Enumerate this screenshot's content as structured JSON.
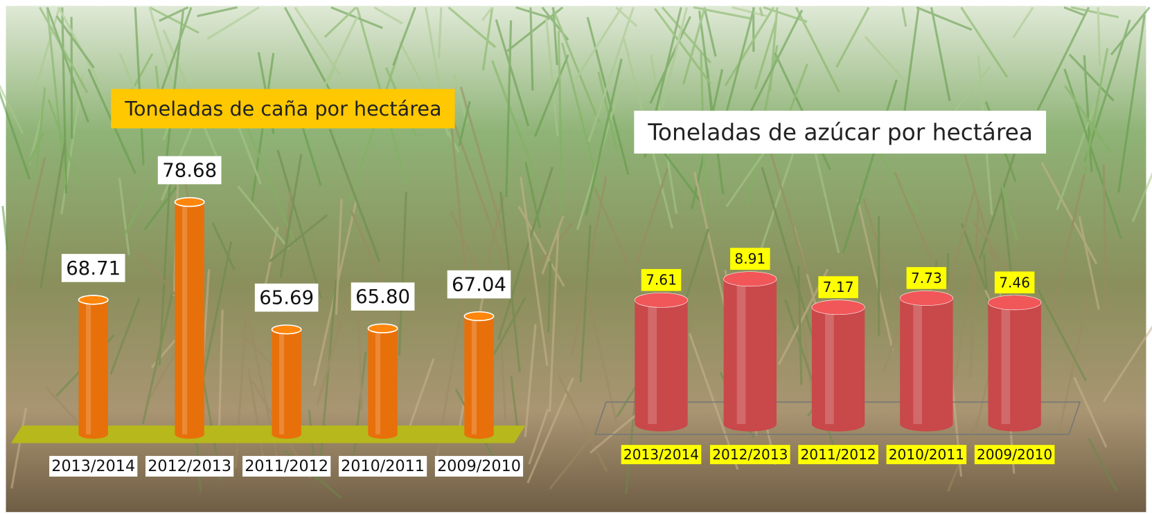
{
  "chart_data": [
    {
      "type": "bar",
      "title": "Toneladas de caña por hectárea",
      "categories": [
        "2013/2014",
        "2012/2013",
        "2011/2012",
        "2010/2011",
        "2009/2010"
      ],
      "values": [
        68.71,
        78.68,
        65.69,
        65.8,
        67.04
      ],
      "value_labels": [
        "68.71",
        "78.68",
        "65.69",
        "65.80",
        "67.04"
      ],
      "color": "#e8700a",
      "ylim": [
        55,
        82
      ]
    },
    {
      "type": "bar",
      "title": "Toneladas de azúcar por hectárea",
      "categories": [
        "2013/2014",
        "2012/2013",
        "2011/2012",
        "2010/2011",
        "2009/2010"
      ],
      "values": [
        7.61,
        8.91,
        7.17,
        7.73,
        7.46
      ],
      "color": "#c9484a",
      "ylim": [
        0,
        10
      ]
    }
  ]
}
